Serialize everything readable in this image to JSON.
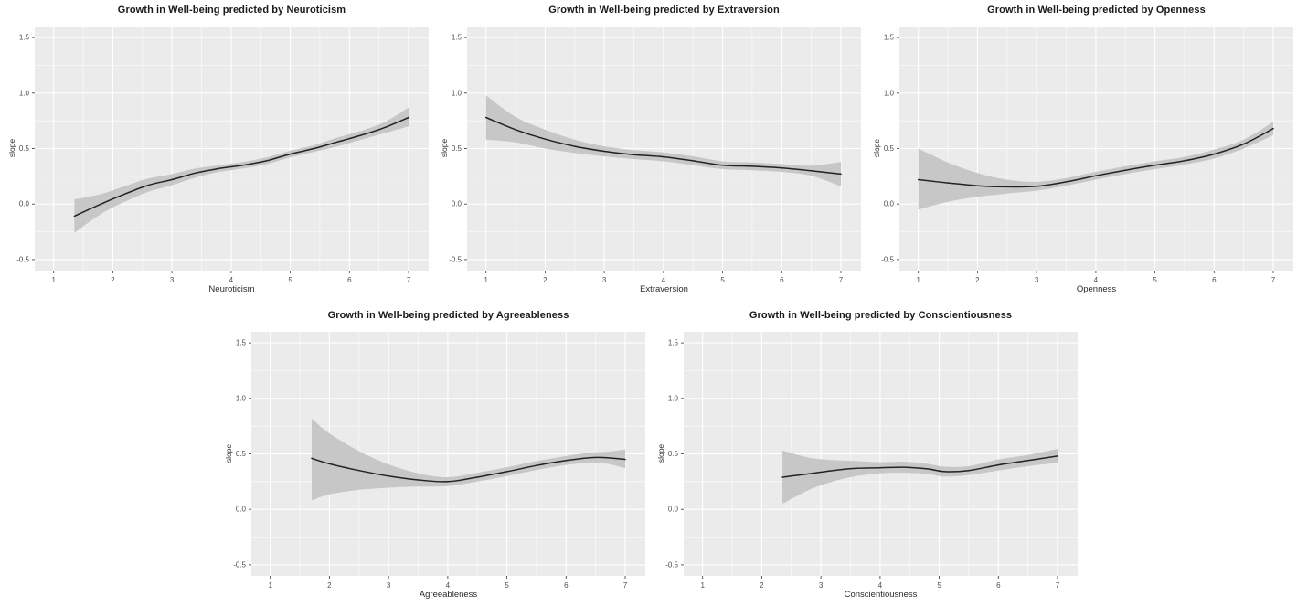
{
  "style": {
    "page_background": "#ffffff",
    "panel_background": "#ebebeb",
    "grid_color": "#ffffff",
    "line_color": "#222222",
    "ribbon_color": "#c7c7c7",
    "tick_mark_color": "#333333",
    "tick_label_color": "#4d4d4d"
  },
  "chart_data": [
    {
      "type": "line",
      "title": "Growth in Well-being predicted by Neuroticism",
      "xlabel": "Neuroticism",
      "ylabel": "slope",
      "xlim": [
        0.68,
        7.34
      ],
      "ylim": [
        -0.6,
        1.6
      ],
      "grid": true,
      "legend": "none",
      "x_ticks": {
        "values": [
          1,
          2,
          3,
          4,
          5,
          6,
          7
        ],
        "labels": [
          "1",
          "2",
          "3",
          "4",
          "5",
          "6",
          "7"
        ]
      },
      "y_ticks": {
        "values": [
          -0.5,
          0.0,
          0.5,
          1.0,
          1.5
        ],
        "labels": [
          "-0.5",
          "0.0",
          "0.5",
          "1.0",
          "1.5"
        ]
      },
      "series": [
        {
          "name": "smooth",
          "x": [
            1.35,
            1.8,
            2.2,
            2.6,
            3.0,
            3.4,
            3.8,
            4.2,
            4.6,
            5.0,
            5.4,
            5.8,
            6.2,
            6.6,
            7.0
          ],
          "y": [
            -0.11,
            0.0,
            0.09,
            0.17,
            0.22,
            0.28,
            0.32,
            0.35,
            0.39,
            0.45,
            0.5,
            0.56,
            0.62,
            0.69,
            0.78
          ],
          "ci_lower": [
            -0.26,
            -0.09,
            0.02,
            0.11,
            0.17,
            0.24,
            0.29,
            0.32,
            0.36,
            0.42,
            0.47,
            0.52,
            0.58,
            0.64,
            0.7
          ],
          "ci_upper": [
            0.04,
            0.09,
            0.16,
            0.23,
            0.27,
            0.32,
            0.35,
            0.38,
            0.42,
            0.48,
            0.53,
            0.6,
            0.66,
            0.74,
            0.87
          ]
        }
      ]
    },
    {
      "type": "line",
      "title": "Growth in Well-being predicted by Extraversion",
      "xlabel": "Extraversion",
      "ylabel": "slope",
      "xlim": [
        0.68,
        7.34
      ],
      "ylim": [
        -0.6,
        1.6
      ],
      "grid": true,
      "legend": "none",
      "x_ticks": {
        "values": [
          1,
          2,
          3,
          4,
          5,
          6,
          7
        ],
        "labels": [
          "1",
          "2",
          "3",
          "4",
          "5",
          "6",
          "7"
        ]
      },
      "y_ticks": {
        "values": [
          -0.5,
          0.0,
          0.5,
          1.0,
          1.5
        ],
        "labels": [
          "-0.5",
          "0.0",
          "0.5",
          "1.0",
          "1.5"
        ]
      },
      "series": [
        {
          "name": "smooth",
          "x": [
            1.0,
            1.5,
            2.0,
            2.5,
            3.0,
            3.5,
            4.0,
            4.5,
            5.0,
            5.5,
            6.0,
            6.5,
            7.0
          ],
          "y": [
            0.78,
            0.67,
            0.585,
            0.52,
            0.475,
            0.445,
            0.425,
            0.39,
            0.35,
            0.34,
            0.325,
            0.3,
            0.27
          ],
          "ci_lower": [
            0.58,
            0.555,
            0.5,
            0.46,
            0.43,
            0.405,
            0.385,
            0.35,
            0.315,
            0.305,
            0.29,
            0.255,
            0.16
          ],
          "ci_upper": [
            0.98,
            0.785,
            0.67,
            0.58,
            0.52,
            0.485,
            0.465,
            0.43,
            0.385,
            0.375,
            0.36,
            0.345,
            0.38
          ]
        }
      ]
    },
    {
      "type": "line",
      "title": "Growth in Well-being predicted by Openness",
      "xlabel": "Openness",
      "ylabel": "slope",
      "xlim": [
        0.68,
        7.34
      ],
      "ylim": [
        -0.6,
        1.6
      ],
      "grid": true,
      "legend": "none",
      "x_ticks": {
        "values": [
          1,
          2,
          3,
          4,
          5,
          6,
          7
        ],
        "labels": [
          "1",
          "2",
          "3",
          "4",
          "5",
          "6",
          "7"
        ]
      },
      "y_ticks": {
        "values": [
          -0.5,
          0.0,
          0.5,
          1.0,
          1.5
        ],
        "labels": [
          "-0.5",
          "0.0",
          "0.5",
          "1.0",
          "1.5"
        ]
      },
      "series": [
        {
          "name": "smooth",
          "x": [
            1.0,
            1.5,
            2.0,
            2.5,
            3.0,
            3.5,
            4.0,
            4.5,
            5.0,
            5.5,
            6.0,
            6.5,
            7.0
          ],
          "y": [
            0.22,
            0.19,
            0.165,
            0.155,
            0.16,
            0.2,
            0.255,
            0.305,
            0.35,
            0.39,
            0.45,
            0.54,
            0.68
          ],
          "ci_lower": [
            -0.05,
            0.02,
            0.065,
            0.095,
            0.12,
            0.165,
            0.22,
            0.27,
            0.315,
            0.355,
            0.41,
            0.5,
            0.62
          ],
          "ci_upper": [
            0.5,
            0.375,
            0.28,
            0.22,
            0.2,
            0.235,
            0.29,
            0.34,
            0.385,
            0.425,
            0.49,
            0.58,
            0.74
          ]
        }
      ]
    },
    {
      "type": "line",
      "title": "Growth in Well-being predicted by Agreeableness",
      "xlabel": "Agreeableness",
      "ylabel": "slope",
      "xlim": [
        0.68,
        7.34
      ],
      "ylim": [
        -0.6,
        1.6
      ],
      "grid": true,
      "legend": "none",
      "x_ticks": {
        "values": [
          1,
          2,
          3,
          4,
          5,
          6,
          7
        ],
        "labels": [
          "1",
          "2",
          "3",
          "4",
          "5",
          "6",
          "7"
        ]
      },
      "y_ticks": {
        "values": [
          -0.5,
          0.0,
          0.5,
          1.0,
          1.5
        ],
        "labels": [
          "-0.5",
          "0.0",
          "0.5",
          "1.0",
          "1.5"
        ]
      },
      "series": [
        {
          "name": "smooth",
          "x": [
            1.7,
            2.0,
            2.5,
            3.0,
            3.5,
            4.0,
            4.5,
            5.0,
            5.5,
            6.0,
            6.4,
            6.7,
            7.0
          ],
          "y": [
            0.46,
            0.41,
            0.35,
            0.3,
            0.265,
            0.25,
            0.29,
            0.34,
            0.395,
            0.44,
            0.465,
            0.465,
            0.45
          ],
          "ci_lower": [
            0.08,
            0.135,
            0.175,
            0.195,
            0.205,
            0.21,
            0.25,
            0.3,
            0.355,
            0.4,
            0.42,
            0.41,
            0.37
          ],
          "ci_upper": [
            0.82,
            0.685,
            0.525,
            0.405,
            0.325,
            0.29,
            0.33,
            0.38,
            0.435,
            0.48,
            0.51,
            0.52,
            0.54
          ]
        }
      ]
    },
    {
      "type": "line",
      "title": "Growth in Well-being predicted by Conscientiousness",
      "xlabel": "Conscientiousness",
      "ylabel": "slope",
      "xlim": [
        0.68,
        7.34
      ],
      "ylim": [
        -0.6,
        1.6
      ],
      "grid": true,
      "legend": "none",
      "x_ticks": {
        "values": [
          1,
          2,
          3,
          4,
          5,
          6,
          7
        ],
        "labels": [
          "1",
          "2",
          "3",
          "4",
          "5",
          "6",
          "7"
        ]
      },
      "y_ticks": {
        "values": [
          -0.5,
          0.0,
          0.5,
          1.0,
          1.5
        ],
        "labels": [
          "-0.5",
          "0.0",
          "0.5",
          "1.0",
          "1.5"
        ]
      },
      "series": [
        {
          "name": "smooth",
          "x": [
            2.35,
            2.8,
            3.2,
            3.6,
            4.0,
            4.4,
            4.8,
            5.1,
            5.5,
            6.0,
            6.5,
            7.0
          ],
          "y": [
            0.29,
            0.32,
            0.35,
            0.37,
            0.375,
            0.38,
            0.365,
            0.34,
            0.35,
            0.4,
            0.44,
            0.48
          ],
          "ci_lower": [
            0.05,
            0.175,
            0.25,
            0.3,
            0.325,
            0.33,
            0.32,
            0.295,
            0.31,
            0.35,
            0.39,
            0.42
          ],
          "ci_upper": [
            0.53,
            0.465,
            0.445,
            0.435,
            0.425,
            0.43,
            0.41,
            0.385,
            0.39,
            0.45,
            0.49,
            0.545
          ]
        }
      ]
    }
  ]
}
